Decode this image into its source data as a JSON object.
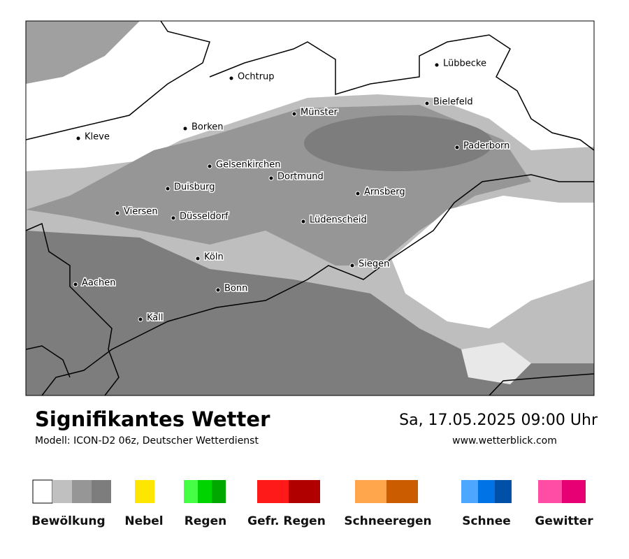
{
  "title": "Signifikantes Wetter",
  "model": "Modell: ICON-D2 06z, Deutscher Wetterdienst",
  "datetime": "Sa, 17.05.2025 09:00 Uhr",
  "website": "www.wetterblick.com",
  "cities": [
    "Ochtrup",
    "Lübbecke",
    "Bielefeld",
    "Münster",
    "Borken",
    "Kleve",
    "Paderborn",
    "Gelsenkirchen",
    "Dortmund",
    "Duisburg",
    "Arnsberg",
    "Viersen",
    "Düsseldorf",
    "Lüdenscheid",
    "Köln",
    "Siegen",
    "Aachen",
    "Bonn",
    "Kall"
  ],
  "legend": [
    "Bewölkung",
    "Nebel",
    "Regen",
    "Gefr. Regen",
    "Schneeregen",
    "Schnee",
    "Gewitter"
  ]
}
